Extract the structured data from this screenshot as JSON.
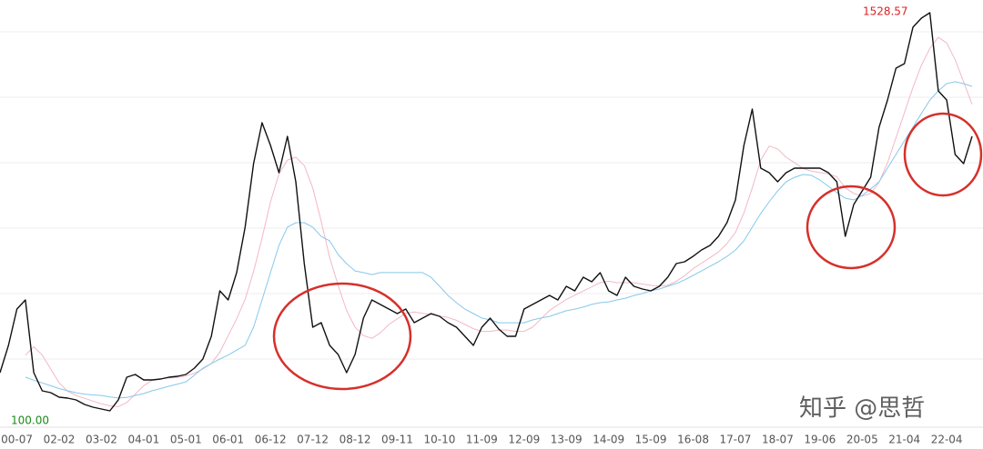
{
  "chart_data": {
    "type": "line",
    "categories": [
      null,
      null,
      "00-07",
      null,
      null,
      null,
      null,
      "02-02",
      null,
      null,
      null,
      null,
      "03-02",
      null,
      null,
      null,
      null,
      "04-01",
      null,
      null,
      null,
      null,
      "05-01",
      null,
      null,
      null,
      null,
      "06-01",
      null,
      null,
      null,
      null,
      "06-12",
      null,
      null,
      null,
      null,
      "07-12",
      null,
      null,
      null,
      null,
      "08-12",
      null,
      null,
      null,
      null,
      "09-11",
      null,
      null,
      null,
      null,
      "10-10",
      null,
      null,
      null,
      null,
      "11-09",
      null,
      null,
      null,
      null,
      "12-09",
      null,
      null,
      null,
      null,
      "13-09",
      null,
      null,
      null,
      null,
      "14-09",
      null,
      null,
      null,
      null,
      "15-09",
      null,
      null,
      null,
      null,
      "16-08",
      null,
      null,
      null,
      null,
      "17-07",
      null,
      null,
      null,
      null,
      "18-07",
      null,
      null,
      null,
      null,
      "19-06",
      null,
      null,
      null,
      null,
      "20-05",
      null,
      null,
      null,
      null,
      "21-04",
      null,
      null,
      null,
      null,
      "22-04",
      null,
      null,
      null
    ],
    "series": [
      {
        "color": "#f2b8c4",
        "values": [
          null,
          null,
          null,
          300,
          330,
          300,
          250,
          200,
          170,
          155,
          145,
          135,
          125,
          118,
          115,
          130,
          160,
          190,
          210,
          215,
          218,
          220,
          225,
          235,
          250,
          270,
          310,
          370,
          430,
          500,
          600,
          720,
          850,
          950,
          1000,
          1010,
          980,
          900,
          780,
          650,
          550,
          460,
          400,
          370,
          360,
          380,
          410,
          430,
          450,
          455,
          450,
          445,
          440,
          435,
          425,
          410,
          395,
          385,
          385,
          390,
          390,
          385,
          385,
          400,
          430,
          460,
          480,
          500,
          515,
          530,
          545,
          560,
          565,
          560,
          560,
          560,
          555,
          550,
          548,
          550,
          565,
          585,
          610,
          630,
          650,
          670,
          700,
          740,
          810,
          900,
          1000,
          1050,
          1040,
          1010,
          990,
          970,
          960,
          955,
          950,
          940,
          900,
          880,
          870,
          880,
          920,
          990,
          1080,
          1170,
          1260,
          1340,
          1400,
          1440,
          1420,
          1360,
          1280,
          1200
        ]
      },
      {
        "color": "#86c8ea",
        "values": [
          null,
          null,
          null,
          221,
          210,
          200,
          190,
          180,
          172,
          165,
          160,
          157,
          155,
          150,
          146,
          148,
          155,
          162,
          172,
          180,
          188,
          196,
          204,
          228,
          253,
          270,
          286,
          300,
          318,
          335,
          400,
          498,
          596,
          694,
          759,
          775,
          775,
          759,
          726,
          710,
          661,
          628,
          602,
          596,
          589,
          596,
          596,
          596,
          596,
          596,
          596,
          579,
          547,
          514,
          488,
          465,
          449,
          433,
          426,
          416,
          416,
          416,
          416,
          426,
          433,
          439,
          449,
          459,
          465,
          472,
          482,
          488,
          491,
          498,
          504,
          514,
          521,
          531,
          537,
          547,
          557,
          570,
          586,
          602,
          619,
          635,
          654,
          677,
          710,
          759,
          808,
          850,
          889,
          922,
          938,
          948,
          945,
          928,
          906,
          883,
          863,
          857,
          873,
          896,
          922,
          971,
          1020,
          1069,
          1118,
          1167,
          1215,
          1248,
          1274,
          1281,
          1274,
          1264
        ]
      },
      {
        "color": "#111111",
        "values": [
          237.0,
          334.8,
          465.3,
          497.9,
          237.0,
          171.8,
          165.2,
          148.9,
          145.7,
          139.1,
          122.8,
          113.0,
          106.5,
          100,
          139.1,
          220.7,
          230.5,
          210.9,
          210.9,
          214.2,
          220.7,
          223.9,
          230.5,
          253.3,
          285.9,
          367.5,
          530.5,
          497.9,
          595.8,
          758.8,
          987.2,
          1133.9,
          1052.4,
          954.5,
          1085.0,
          921.9,
          628.4,
          400.1,
          416.4,
          334.8,
          302.2,
          237.0,
          302.2,
          432.7,
          497.9,
          481.6,
          465.3,
          449.0,
          465.3,
          416.4,
          432.7,
          449.0,
          439.2,
          416.4,
          400.1,
          367.5,
          334.8,
          400.1,
          432.7,
          393.5,
          367.5,
          367.5,
          465.3,
          481.6,
          497.9,
          514.2,
          497.9,
          546.8,
          530.5,
          579.5,
          563.1,
          595.8,
          530.5,
          514.2,
          579.5,
          546.8,
          537.1,
          530.5,
          546.8,
          579.5,
          628.4,
          634.9,
          654.5,
          677.3,
          693.6,
          726.2,
          775.2,
          856.7,
          1052.4,
          1182.9,
          970.8,
          954.5,
          921.9,
          954.5,
          970.8,
          970.8,
          970.8,
          970.8,
          954.5,
          921.9,
          726.2,
          840.4,
          889.3,
          938.2,
          1117.6,
          1215.5,
          1329.6,
          1345.9,
          1476.4,
          1509.0,
          1528.57,
          1248.1,
          1215.5,
          1019.8,
          987.2,
          1085.0
        ]
      }
    ],
    "ylim": [
      41.3,
      1557.9
    ],
    "annotations": {
      "high": "1528.57",
      "low": "100.00"
    },
    "watermark": "知乎 @思哲"
  }
}
